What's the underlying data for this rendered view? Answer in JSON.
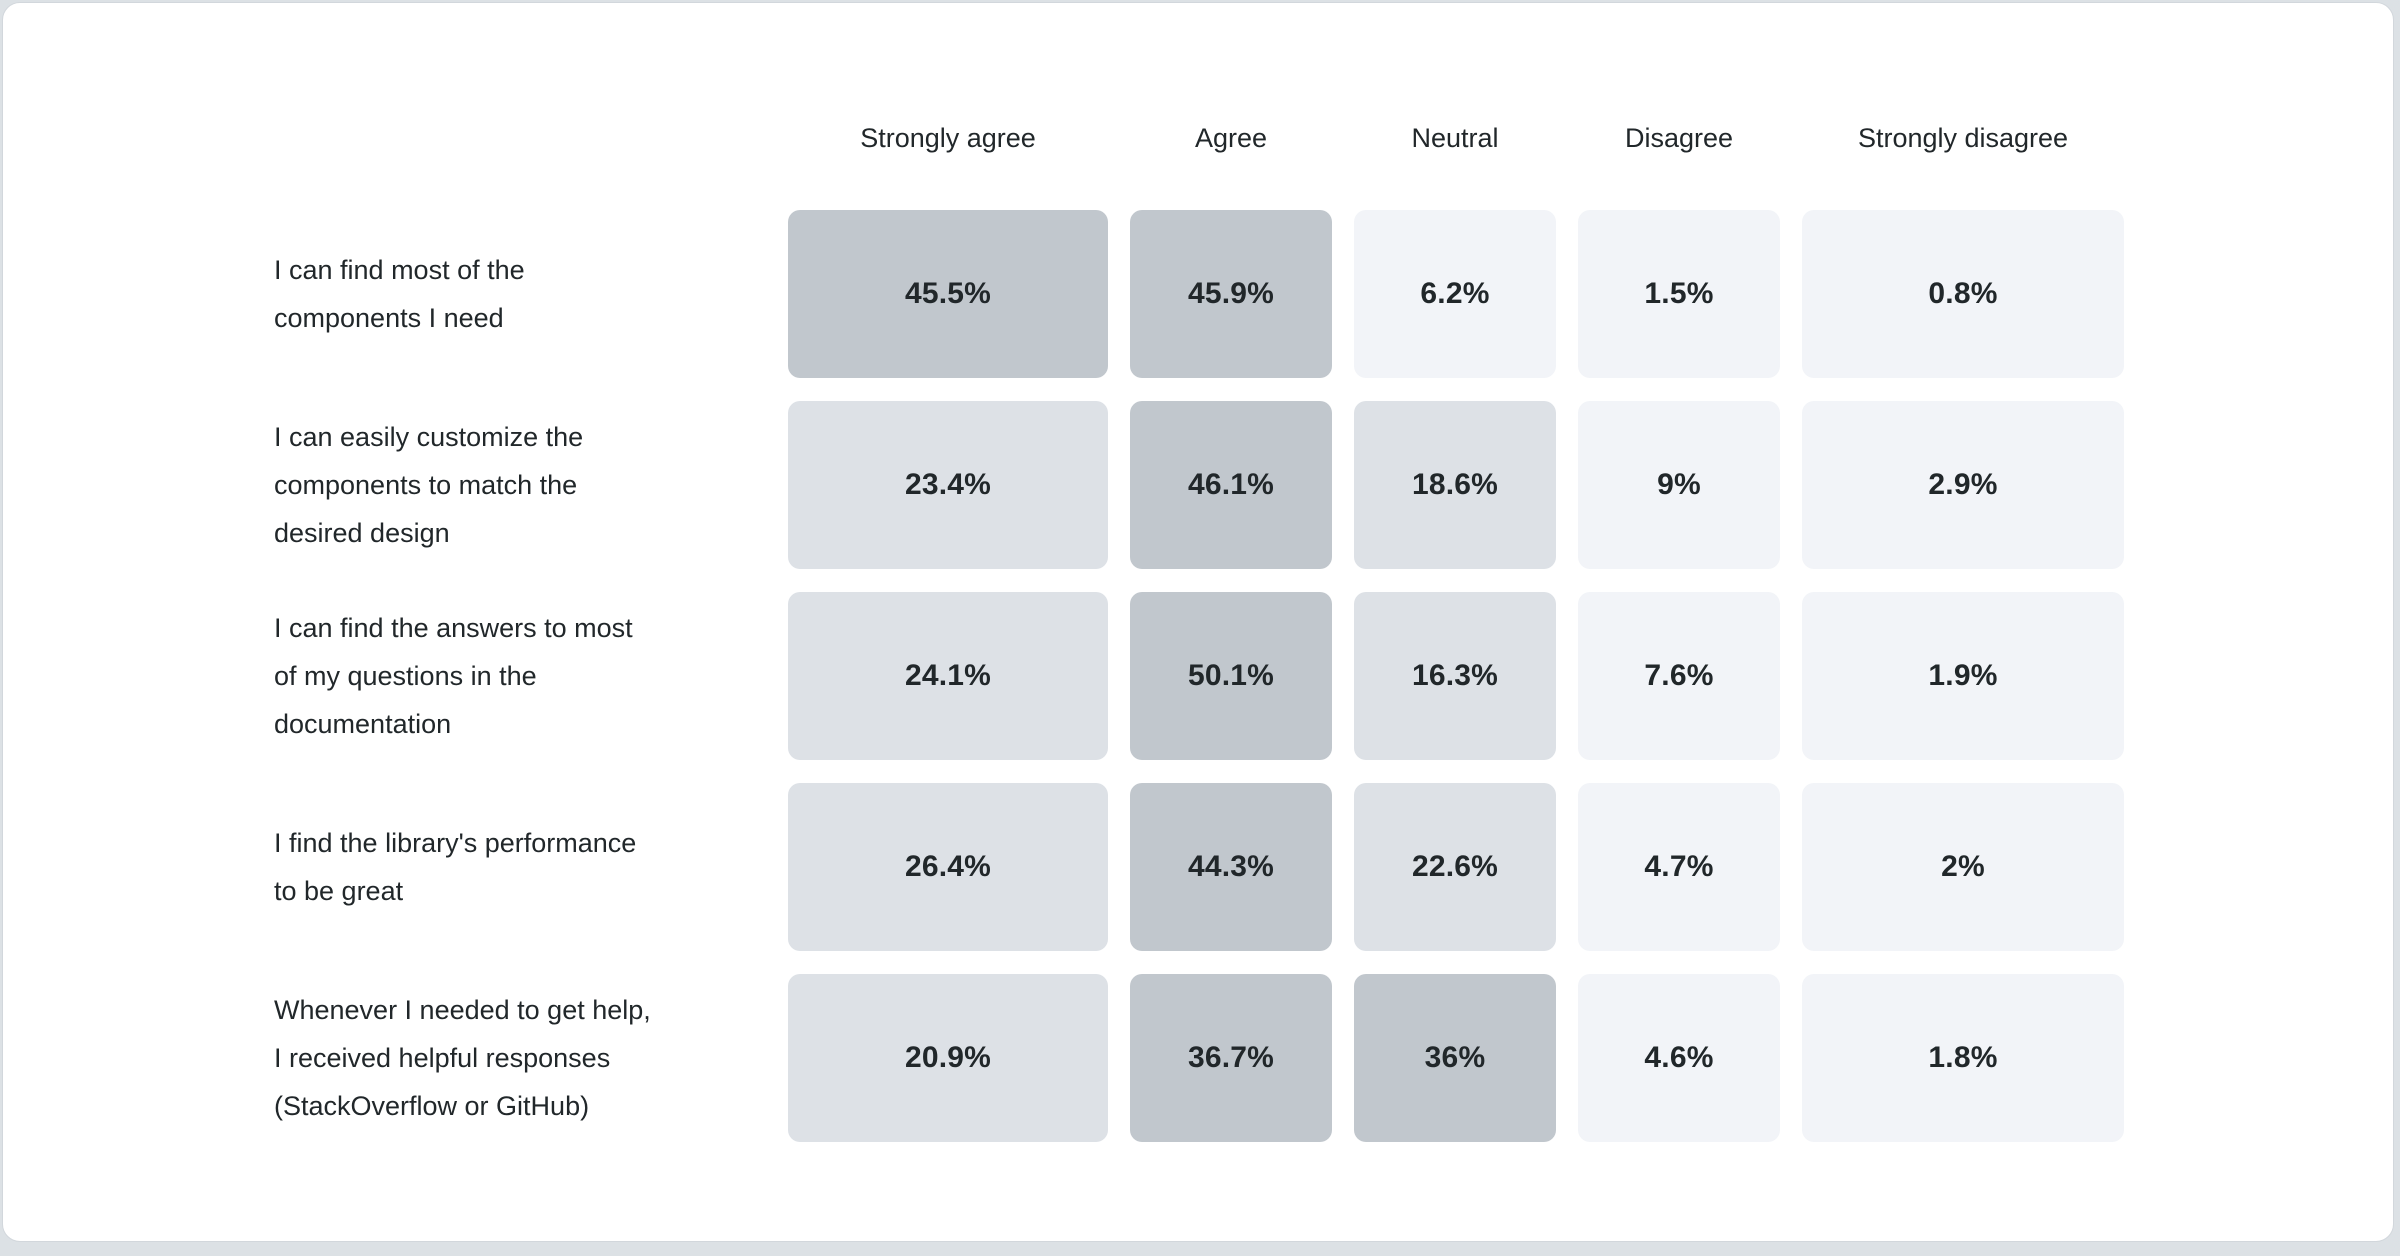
{
  "page": {
    "background_color": "#dce1e5",
    "card_background": "#ffffff",
    "card_border_color": "#d2d7dc",
    "text_color": "#21272a"
  },
  "chart_data": {
    "type": "heatmap",
    "title": "",
    "columns": [
      "Strongly agree",
      "Agree",
      "Neutral",
      "Disagree",
      "Strongly disagree"
    ],
    "rows": [
      {
        "label": "I can find most of the components I need",
        "label_lines": [
          "I can find most of the",
          "components I need"
        ],
        "values": [
          45.5,
          45.9,
          6.2,
          1.5,
          0.8
        ],
        "display": [
          "45.5%",
          "45.9%",
          "6.2%",
          "1.5%",
          "0.8%"
        ],
        "levels": [
          "high",
          "high",
          "low",
          "low",
          "low"
        ]
      },
      {
        "label": "I can easily customize the components to match the desired design",
        "label_lines": [
          "I can easily customize the",
          "components to match the",
          "desired design"
        ],
        "values": [
          23.4,
          46.1,
          18.6,
          9,
          2.9
        ],
        "display": [
          "23.4%",
          "46.1%",
          "18.6%",
          "9%",
          "2.9%"
        ],
        "levels": [
          "mid",
          "high",
          "mid",
          "low",
          "low"
        ]
      },
      {
        "label": "I can find the answers to most of my questions in the documentation",
        "label_lines": [
          "I can find the answers to most",
          "of my questions in the",
          "documentation"
        ],
        "values": [
          24.1,
          50.1,
          16.3,
          7.6,
          1.9
        ],
        "display": [
          "24.1%",
          "50.1%",
          "16.3%",
          "7.6%",
          "1.9%"
        ],
        "levels": [
          "mid",
          "high",
          "mid",
          "low",
          "low"
        ]
      },
      {
        "label": "I find the library's performance to be great",
        "label_lines": [
          "I find the library's performance",
          "to be great"
        ],
        "values": [
          26.4,
          44.3,
          22.6,
          4.7,
          2
        ],
        "display": [
          "26.4%",
          "44.3%",
          "22.6%",
          "4.7%",
          "2%"
        ],
        "levels": [
          "mid",
          "high",
          "mid",
          "low",
          "low"
        ]
      },
      {
        "label": "Whenever I needed to get help, I received helpful responses (StackOverflow or GitHub)",
        "label_lines": [
          "Whenever I needed to get help,",
          "I received helpful responses",
          "(StackOverflow or GitHub)"
        ],
        "values": [
          20.9,
          36.7,
          36,
          4.6,
          1.8
        ],
        "display": [
          "20.9%",
          "36.7%",
          "36%",
          "4.6%",
          "1.8%"
        ],
        "levels": [
          "mid",
          "high",
          "high",
          "low",
          "low"
        ]
      }
    ],
    "palette": {
      "high": "#c1c7cd",
      "mid": "#dde1e6",
      "low": "#f2f4f8"
    },
    "legend_position": "none",
    "grid": false
  }
}
